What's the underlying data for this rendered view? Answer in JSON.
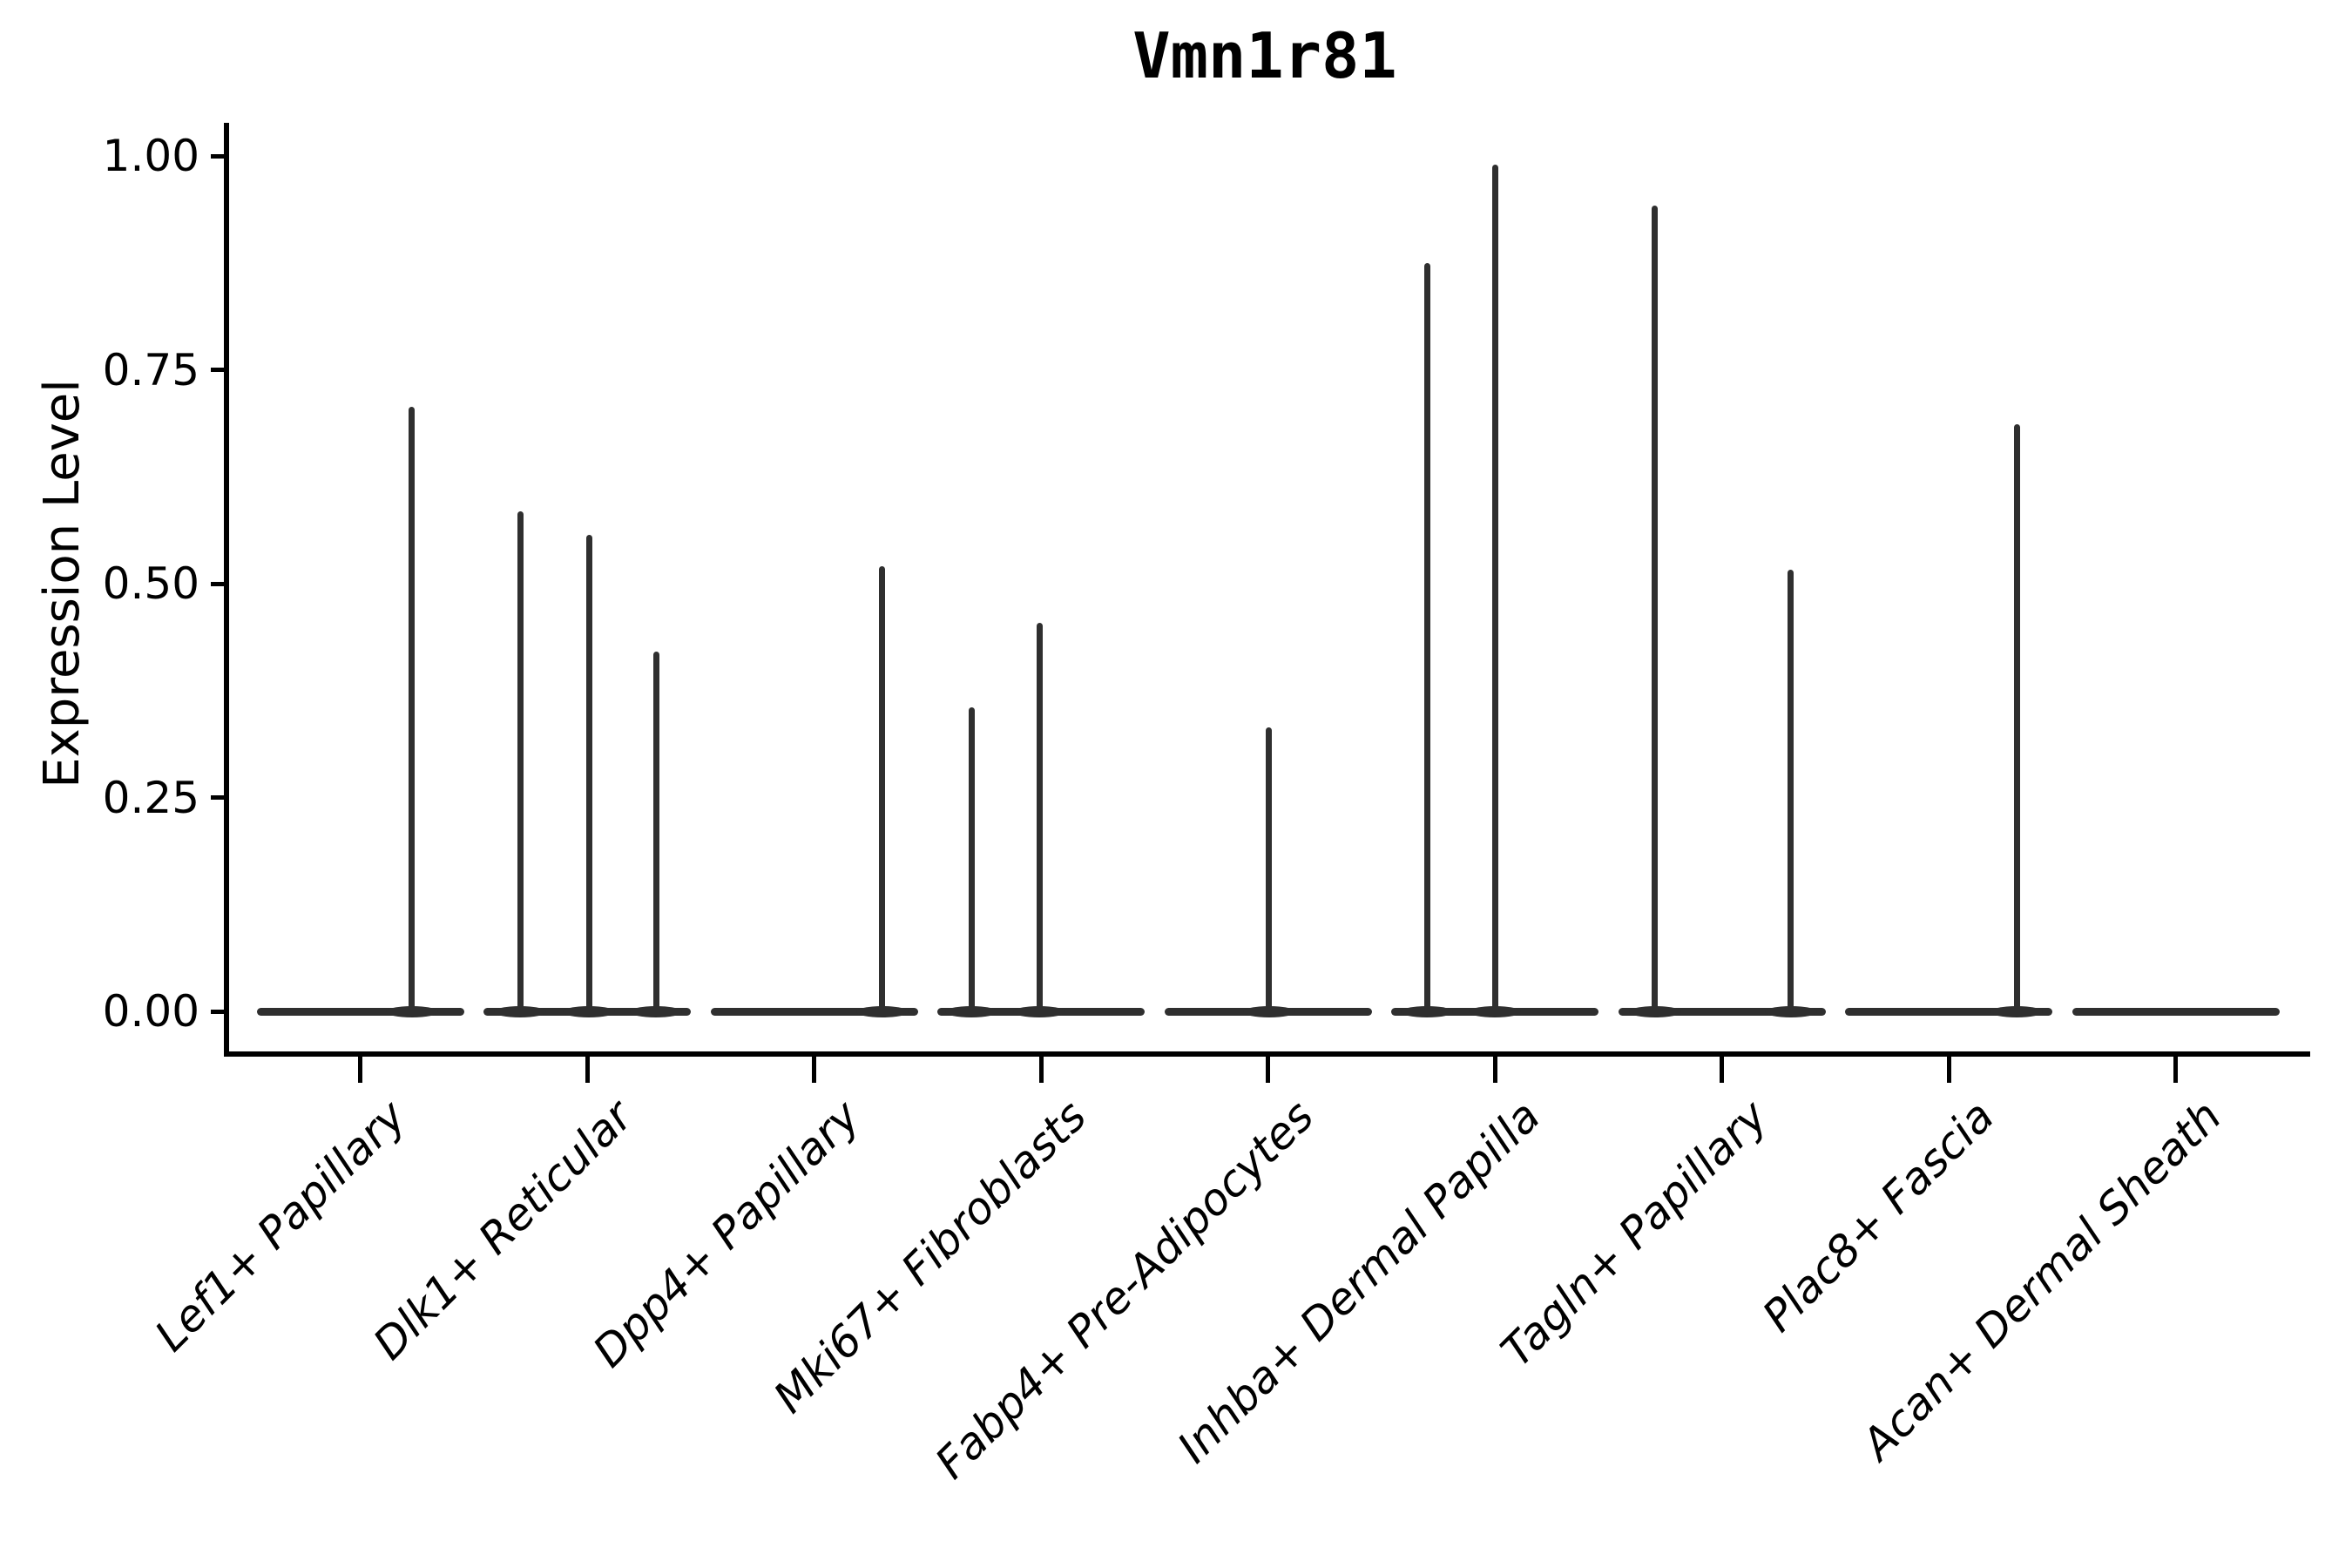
{
  "figure": {
    "title": "Vmn1r81",
    "background_color": "#ffffff"
  },
  "style": {
    "violin_color": "#2f2f2f",
    "axis_color": "#000000",
    "text_color": "#000000"
  },
  "chart_data": {
    "type": "violin",
    "title": "Vmn1r81",
    "xlabel": "",
    "ylabel": "Expression Level",
    "ylim": [
      0,
      1.0
    ],
    "grid": false,
    "legend_position": "none",
    "yticks": [
      {
        "label": "0.00",
        "value": 0.0
      },
      {
        "label": "0.25",
        "value": 0.25
      },
      {
        "label": "0.50",
        "value": 0.5
      },
      {
        "label": "0.75",
        "value": 0.75
      },
      {
        "label": "1.00",
        "value": 1.0
      }
    ],
    "description": "Flattened violin plot per cluster; nearly all cells at expression 0 (wide flat base), thin spikes mark the maximum expression values of rare expressing cells. Spike offset is horizontal px offset from the category center.",
    "categories": [
      {
        "label": "Lef1+ Papillary",
        "spikes": [
          {
            "offset": 59,
            "value": 0.707
          }
        ]
      },
      {
        "label": "Dlk1+ Reticular",
        "spikes": [
          {
            "offset": -77,
            "value": 0.585
          },
          {
            "offset": 2,
            "value": 0.557
          },
          {
            "offset": 79,
            "value": 0.421
          }
        ]
      },
      {
        "label": "Dpp4+ Papillary",
        "spikes": [
          {
            "offset": 78,
            "value": 0.521
          }
        ]
      },
      {
        "label": "Mki67+ Fibroblasts",
        "spikes": [
          {
            "offset": -80,
            "value": 0.356
          },
          {
            "offset": -2,
            "value": 0.454
          }
        ]
      },
      {
        "label": "Fabp4+ Pre-Adipocytes",
        "spikes": [
          {
            "offset": 1,
            "value": 0.332
          }
        ]
      },
      {
        "label": "Inhba+ Dermal Papilla",
        "spikes": [
          {
            "offset": -78,
            "value": 0.875
          },
          {
            "offset": 0,
            "value": 0.99
          }
        ]
      },
      {
        "label": "Tagln+ Papillary",
        "spikes": [
          {
            "offset": -77,
            "value": 0.942
          },
          {
            "offset": 79,
            "value": 0.516
          }
        ]
      },
      {
        "label": "Plac8+ Fascia",
        "spikes": [
          {
            "offset": 78,
            "value": 0.687
          }
        ]
      },
      {
        "label": "Acan+ Dermal Sheath",
        "spikes": []
      }
    ]
  }
}
